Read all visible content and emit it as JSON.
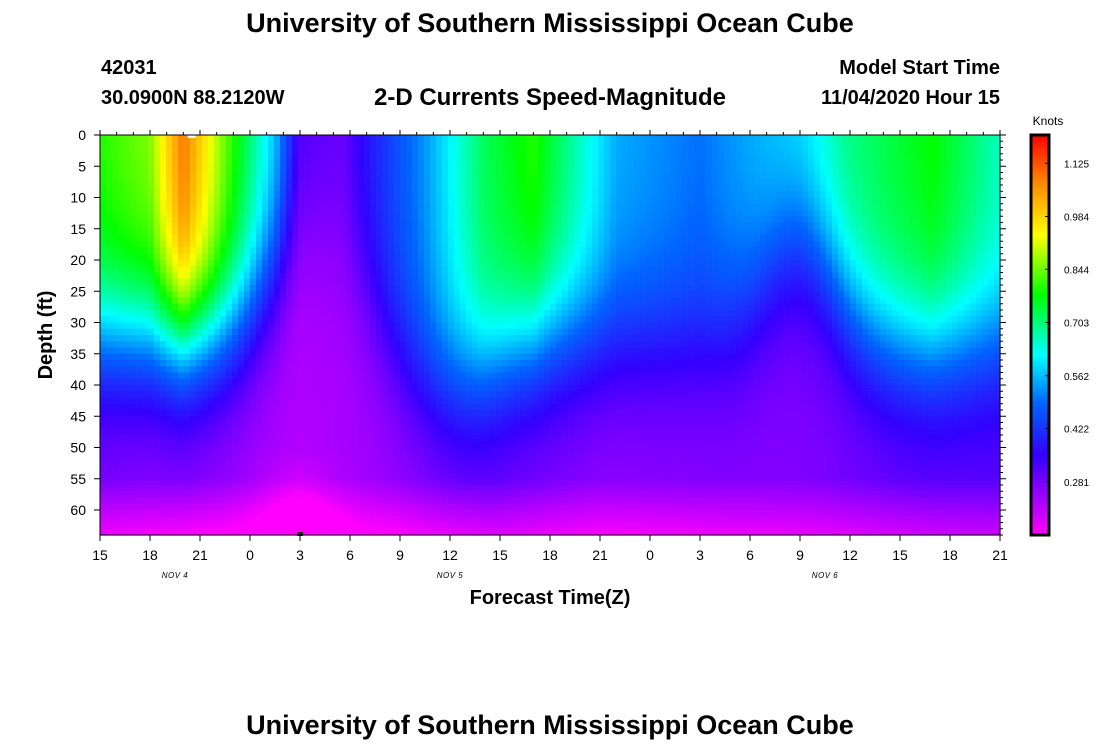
{
  "header": {
    "title_top": "University of Southern Mississippi Ocean Cube",
    "title_bottom": "University of Southern Mississippi Ocean Cube",
    "station_id": "42031",
    "coordinates": "30.0900N 88.2120W",
    "model_start_label": "Model Start Time",
    "model_start_value": "11/04/2020 Hour 15"
  },
  "chart_data": {
    "type": "heatmap",
    "title": "2-D Currents Speed-Magnitude",
    "xlabel": "Forecast Time(Z)",
    "ylabel": "Depth (ft)",
    "x_hours": [
      0,
      3,
      6,
      9,
      12,
      15,
      18,
      21,
      24,
      27,
      30,
      33,
      36,
      39,
      42,
      45,
      48,
      51,
      54
    ],
    "x_tick_labels": [
      "15",
      "18",
      "21",
      "0",
      "3",
      "6",
      "9",
      "12",
      "15",
      "18",
      "21",
      "0",
      "3",
      "6",
      "9",
      "12",
      "15",
      "18",
      "21"
    ],
    "date_labels": [
      {
        "label": "NOV 4",
        "hour": 4.5
      },
      {
        "label": "NOV 5",
        "hour": 21
      },
      {
        "label": "NOV 6",
        "hour": 43.5
      }
    ],
    "y_ticks": [
      0,
      5,
      10,
      15,
      20,
      25,
      30,
      35,
      40,
      45,
      50,
      55,
      60
    ],
    "ylim": [
      0,
      64
    ],
    "colorbar": {
      "label": "Knots",
      "min": 0.14,
      "max": 1.2,
      "ticks": [
        "1.125",
        "0.984",
        "0.844",
        "0.703",
        "0.562",
        "0.422",
        "0.281"
      ],
      "tick_values": [
        1.125,
        0.984,
        0.844,
        0.703,
        0.562,
        0.422,
        0.281
      ]
    },
    "surface_speed_knots": [
      {
        "hour": 0,
        "value": 0.8
      },
      {
        "hour": 3,
        "value": 0.86
      },
      {
        "hour": 5,
        "value": 1.1
      },
      {
        "hour": 7.5,
        "value": 0.85
      },
      {
        "hour": 10.5,
        "value": 0.58
      },
      {
        "hour": 12,
        "value": 0.33
      },
      {
        "hour": 14.5,
        "value": 0.3
      },
      {
        "hour": 16.5,
        "value": 0.4
      },
      {
        "hour": 19.5,
        "value": 0.53
      },
      {
        "hour": 23,
        "value": 0.72
      },
      {
        "hour": 26,
        "value": 0.8
      },
      {
        "hour": 31,
        "value": 0.55
      },
      {
        "hour": 36,
        "value": 0.5
      },
      {
        "hour": 42,
        "value": 0.6
      },
      {
        "hour": 45,
        "value": 0.7
      },
      {
        "hour": 50,
        "value": 0.78
      },
      {
        "hour": 54,
        "value": 0.66
      }
    ],
    "near_bottom_speed_knots": [
      {
        "hour": 0,
        "value": 0.26
      },
      {
        "hour": 12,
        "value": 0.22
      },
      {
        "hour": 24,
        "value": 0.27
      },
      {
        "hour": 30,
        "value": 0.25
      },
      {
        "hour": 42,
        "value": 0.27
      },
      {
        "hour": 54,
        "value": 0.3
      }
    ],
    "markers": [
      {
        "type": "white",
        "hour": 5.5,
        "depth": 0
      },
      {
        "type": "black",
        "hour": 12,
        "depth": 64
      }
    ]
  }
}
